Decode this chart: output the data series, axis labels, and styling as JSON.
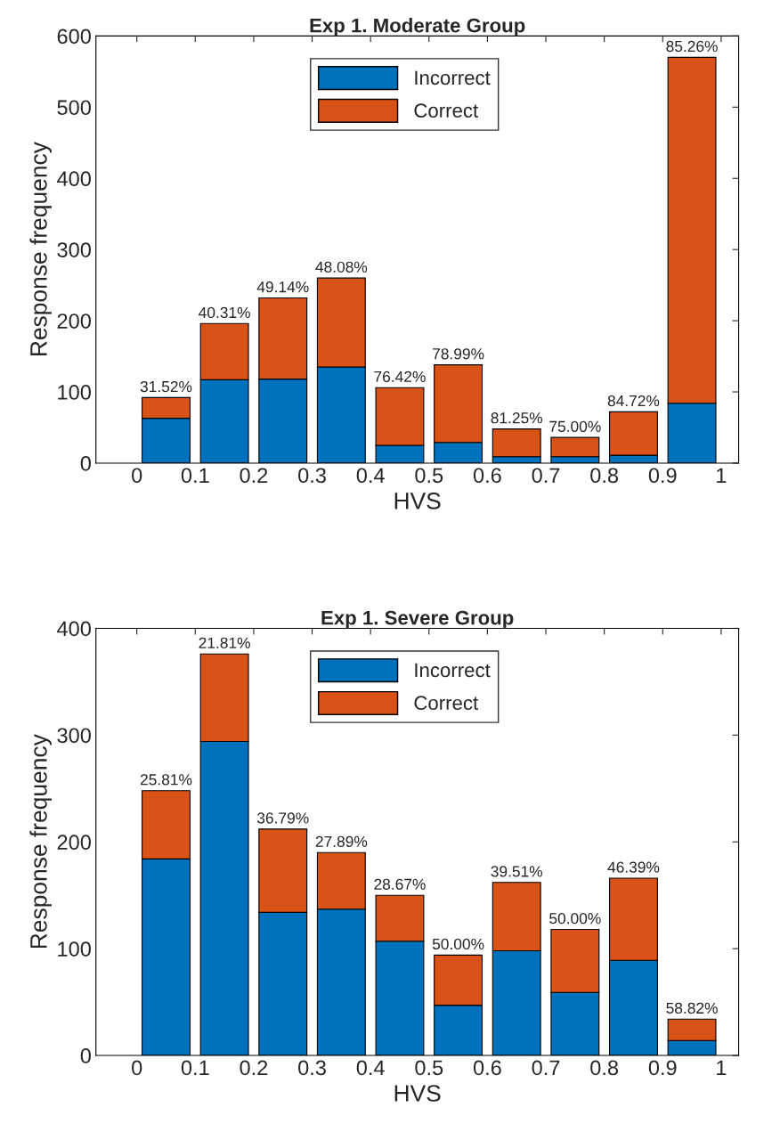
{
  "chart_data": [
    {
      "type": "bar",
      "title": "Exp 1. Moderate Group",
      "xlabel": "HVS",
      "ylabel": "Response frequency",
      "stacked": true,
      "x": [
        0.05,
        0.15,
        0.25,
        0.35,
        0.45,
        0.55,
        0.65,
        0.75,
        0.85,
        0.95
      ],
      "series": [
        {
          "name": "Incorrect",
          "color": "#0072bd",
          "values": [
            63,
            117,
            118,
            135,
            25,
            29,
            9,
            9,
            11,
            84
          ]
        },
        {
          "name": "Correct",
          "color": "#d95319",
          "values": [
            29,
            79,
            114,
            125,
            81,
            109,
            39,
            27,
            61,
            486
          ]
        }
      ],
      "annotations": [
        {
          "text": "31.52%",
          "x": 0.05,
          "y": 92
        },
        {
          "text": "40.31%",
          "x": 0.15,
          "y": 196
        },
        {
          "text": "49.14%",
          "x": 0.25,
          "y": 232
        },
        {
          "text": "48.08%",
          "x": 0.35,
          "y": 260
        },
        {
          "text": "76.42%",
          "x": 0.45,
          "y": 106
        },
        {
          "text": "78.99%",
          "x": 0.55,
          "y": 138
        },
        {
          "text": "81.25%",
          "x": 0.65,
          "y": 48
        },
        {
          "text": "75.00%",
          "x": 0.75,
          "y": 36
        },
        {
          "text": "84.72%",
          "x": 0.85,
          "y": 72
        },
        {
          "text": "85.26%",
          "x": 0.95,
          "y": 570
        }
      ],
      "xlim": [
        -0.07,
        1.03
      ],
      "xticks": [
        0,
        0.1,
        0.2,
        0.3,
        0.4,
        0.5,
        0.6,
        0.7,
        0.8,
        0.9,
        1
      ],
      "ylim": [
        0,
        600
      ],
      "yticks": [
        0,
        100,
        200,
        300,
        400,
        500,
        600
      ],
      "legend": "top",
      "grid": false
    },
    {
      "type": "bar",
      "title": "Exp 1. Severe Group",
      "xlabel": "HVS",
      "ylabel": "Response frequency",
      "stacked": true,
      "x": [
        0.05,
        0.15,
        0.25,
        0.35,
        0.45,
        0.55,
        0.65,
        0.75,
        0.85,
        0.95
      ],
      "series": [
        {
          "name": "Incorrect",
          "color": "#0072bd",
          "values": [
            184,
            294,
            134,
            137,
            107,
            47,
            98,
            59,
            89,
            14
          ]
        },
        {
          "name": "Correct",
          "color": "#d95319",
          "values": [
            64,
            82,
            78,
            53,
            43,
            47,
            64,
            59,
            77,
            20
          ]
        }
      ],
      "annotations": [
        {
          "text": "25.81%",
          "x": 0.05,
          "y": 248
        },
        {
          "text": "21.81%",
          "x": 0.15,
          "y": 376
        },
        {
          "text": "36.79%",
          "x": 0.25,
          "y": 212
        },
        {
          "text": "27.89%",
          "x": 0.35,
          "y": 190
        },
        {
          "text": "28.67%",
          "x": 0.45,
          "y": 150
        },
        {
          "text": "50.00%",
          "x": 0.55,
          "y": 94
        },
        {
          "text": "39.51%",
          "x": 0.65,
          "y": 162
        },
        {
          "text": "50.00%",
          "x": 0.75,
          "y": 118
        },
        {
          "text": "46.39%",
          "x": 0.85,
          "y": 166
        },
        {
          "text": "58.82%",
          "x": 0.95,
          "y": 34
        }
      ],
      "xlim": [
        -0.07,
        1.03
      ],
      "xticks": [
        0,
        0.1,
        0.2,
        0.3,
        0.4,
        0.5,
        0.6,
        0.7,
        0.8,
        0.9,
        1
      ],
      "ylim": [
        0,
        400
      ],
      "yticks": [
        0,
        100,
        200,
        300,
        400
      ],
      "legend": "top",
      "grid": false
    }
  ]
}
